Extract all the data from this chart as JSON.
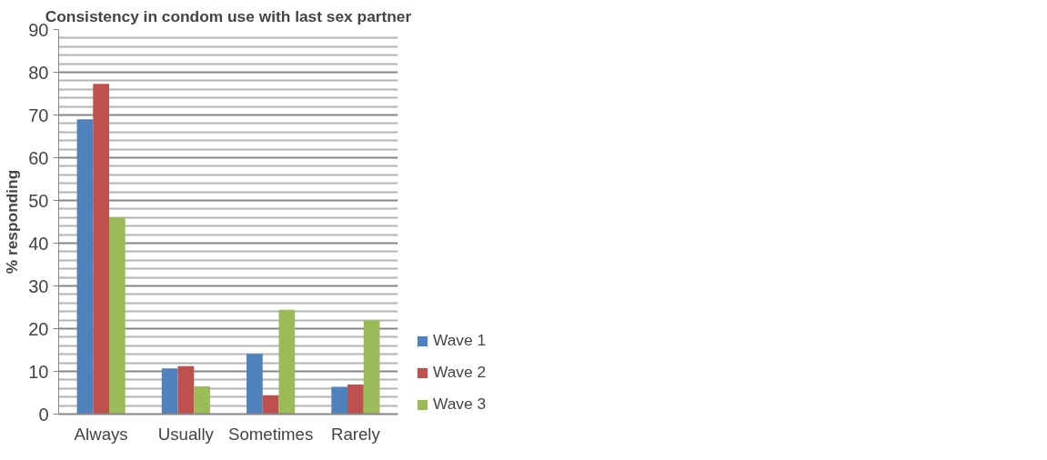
{
  "chart_data": {
    "type": "bar",
    "title": "Consistency in condom use with last sex partner",
    "ylabel": "% responding",
    "categories": [
      "Always",
      "Usually",
      "Sometimes",
      "Rarely"
    ],
    "series": [
      {
        "name": "Wave 1",
        "color": "#4f81bd",
        "values": [
          69,
          10.7,
          14.1,
          6.4
        ]
      },
      {
        "name": "Wave 2",
        "color": "#c0504d",
        "values": [
          77.3,
          11.2,
          4.4,
          6.9
        ]
      },
      {
        "name": "Wave 3",
        "color": "#9bbb59",
        "values": [
          46,
          6.5,
          24.4,
          21.9
        ]
      }
    ],
    "ylim": [
      0,
      90
    ],
    "yticks": [
      0,
      10,
      20,
      30,
      40,
      50,
      60,
      70,
      80,
      90
    ],
    "grid": "y",
    "legend": "right"
  }
}
